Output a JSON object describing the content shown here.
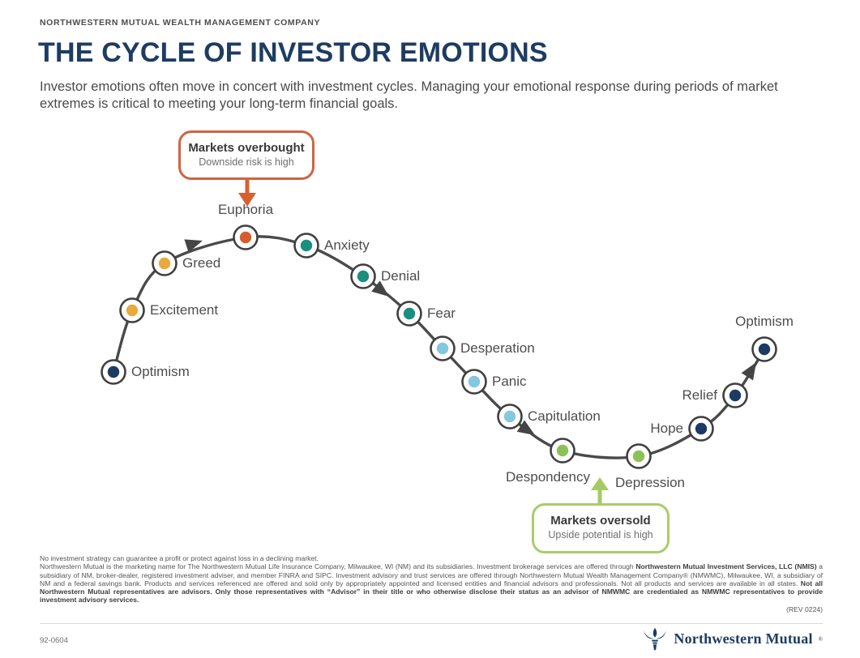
{
  "header": {
    "company": "NORTHWESTERN MUTUAL WEALTH MANAGEMENT COMPANY",
    "title": "THE CYCLE OF INVESTOR EMOTIONS",
    "subtitle": "Investor emotions often move in concert with investment cycles. Managing your emotional response during periods of market extremes is critical to meeting your long-term financial goals."
  },
  "callouts": {
    "overbought": {
      "title": "Markets overbought",
      "subtitle": "Downside risk is high",
      "border_color": "#cf6440",
      "arrow_color": "#d8602f"
    },
    "oversold": {
      "title": "Markets oversold",
      "subtitle": "Upside potential is high",
      "border_color": "#a8cd6a",
      "arrow_color": "#a4cb62"
    }
  },
  "cycle": {
    "curve_color": "#4a4a4a",
    "ring_color": "#3f3f3f",
    "nodes": [
      {
        "label": "Optimism",
        "color": "#1c3b63"
      },
      {
        "label": "Excitement",
        "color": "#eaa93d"
      },
      {
        "label": "Greed",
        "color": "#eaa93d"
      },
      {
        "label": "Euphoria",
        "color": "#d75b2e"
      },
      {
        "label": "Anxiety",
        "color": "#1a8f80"
      },
      {
        "label": "Denial",
        "color": "#1a8f80"
      },
      {
        "label": "Fear",
        "color": "#1a8f80"
      },
      {
        "label": "Desperation",
        "color": "#84c7e0"
      },
      {
        "label": "Panic",
        "color": "#84c7e0"
      },
      {
        "label": "Capitulation",
        "color": "#84c7e0"
      },
      {
        "label": "Despondency",
        "color": "#8dc158"
      },
      {
        "label": "Depression",
        "color": "#8dc158"
      },
      {
        "label": "Hope",
        "color": "#1c3b63"
      },
      {
        "label": "Relief",
        "color": "#1c3b63"
      },
      {
        "label": "Optimism",
        "color": "#1c3b63"
      }
    ]
  },
  "disclaimer": {
    "line1": "No investment strategy can guarantee a profit or protect against loss in a declining market.",
    "segments": [
      {
        "bold": false,
        "text": "Northwestern Mutual is the marketing name for The Northwestern Mutual Life Insurance Company, Milwaukee, WI (NM) and its subsidiaries. Investment brokerage services are offered through "
      },
      {
        "bold": true,
        "text": "Northwestern Mutual Investment Services, LLC (NMIS)"
      },
      {
        "bold": false,
        "text": " a subsidiary of NM, broker-dealer, registered investment adviser, and member FINRA and SIPC. Investment advisory and trust services are offered through Northwestern Mutual Wealth Management Company® (NMWMC), Milwaukee, WI, a subsidiary of NM and a federal savings bank. Products and services referenced are offered and sold only by appropriately appointed and licensed entities and financial advisors and professionals. Not all products and services are available in all states. "
      },
      {
        "bold": true,
        "text": "Not all Northwestern Mutual representatives are advisors. Only those representatives with “Advisor” in their title or who otherwise disclose their status as an advisor of NMWMC are credentialed as NMWMC representatives to provide investment advisory services."
      }
    ],
    "rev": "(REV 0224)"
  },
  "footer": {
    "form_number": "92-0604",
    "logo_text": "Northwestern Mutual",
    "logo_mark": "®",
    "logo_color": "#1e3c62"
  }
}
